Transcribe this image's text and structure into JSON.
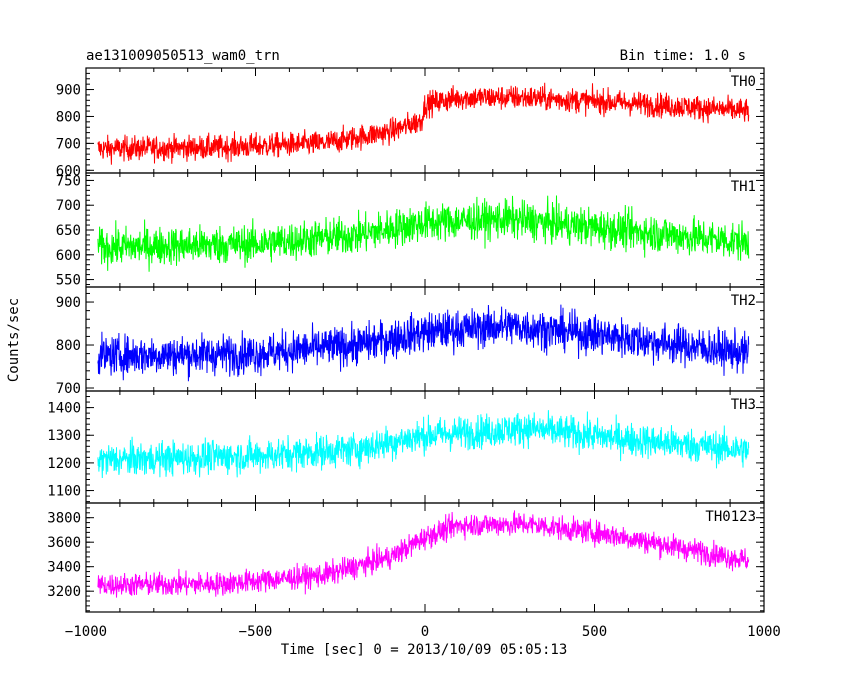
{
  "chart_data": {
    "type": "line",
    "title": "ae131009050513_wam0_trn",
    "bin_time_label": "Bin time: 1.0 s",
    "xlabel": "Time [sec] 0 = 2013/10/09 05:05:13",
    "ylabel": "Counts/sec",
    "xlim": [
      -1000,
      1000
    ],
    "xticks": [
      -1000,
      -500,
      0,
      500,
      1000
    ],
    "x_tick_labels": [
      "−1000",
      "−500",
      "0",
      "500",
      "1000"
    ],
    "data_x_range": [
      -965,
      955
    ],
    "grid": false,
    "panels": [
      {
        "name": "TH0",
        "color": "#ff0000",
        "ylim": [
          590,
          980
        ],
        "yticks": [
          600,
          700,
          800,
          900
        ],
        "y_tick_labels": [
          "600",
          "700",
          "800",
          "900"
        ],
        "trend": [
          [
            -965,
            680
          ],
          [
            -600,
            685
          ],
          [
            -300,
            700
          ],
          [
            -100,
            745
          ],
          [
            -10,
            785
          ],
          [
            0,
            845
          ],
          [
            100,
            870
          ],
          [
            300,
            870
          ],
          [
            600,
            850
          ],
          [
            955,
            820
          ]
        ],
        "noise_amplitude": 45
      },
      {
        "name": "TH1",
        "color": "#00ff00",
        "ylim": [
          535,
          765
        ],
        "yticks": [
          550,
          600,
          650,
          700,
          750
        ],
        "y_tick_labels": [
          "550",
          "600",
          "650",
          "700",
          "750"
        ],
        "trend": [
          [
            -965,
            615
          ],
          [
            -500,
            622
          ],
          [
            -200,
            640
          ],
          [
            0,
            665
          ],
          [
            250,
            672
          ],
          [
            500,
            655
          ],
          [
            955,
            625
          ]
        ],
        "noise_amplitude": 38
      },
      {
        "name": "TH2",
        "color": "#0000ff",
        "ylim": [
          693,
          935
        ],
        "yticks": [
          700,
          800,
          900
        ],
        "y_tick_labels": [
          "700",
          "800",
          "900"
        ],
        "trend": [
          [
            -965,
            775
          ],
          [
            -500,
            780
          ],
          [
            -200,
            800
          ],
          [
            0,
            830
          ],
          [
            250,
            845
          ],
          [
            550,
            820
          ],
          [
            955,
            780
          ]
        ],
        "noise_amplitude": 45
      },
      {
        "name": "TH3",
        "color": "#00ffff",
        "ylim": [
          1055,
          1460
        ],
        "yticks": [
          1100,
          1200,
          1300,
          1400
        ],
        "y_tick_labels": [
          "1100",
          "1200",
          "1300",
          "1400"
        ],
        "trend": [
          [
            -965,
            1210
          ],
          [
            -500,
            1225
          ],
          [
            -200,
            1250
          ],
          [
            0,
            1300
          ],
          [
            300,
            1325
          ],
          [
            600,
            1285
          ],
          [
            955,
            1245
          ]
        ],
        "noise_amplitude": 60
      },
      {
        "name": "TH0123",
        "color": "#ff00ff",
        "ylim": [
          3030,
          3920
        ],
        "yticks": [
          3200,
          3400,
          3600,
          3800
        ],
        "y_tick_labels": [
          "3200",
          "3400",
          "3600",
          "3800"
        ],
        "trend": [
          [
            -965,
            3250
          ],
          [
            -600,
            3260
          ],
          [
            -300,
            3330
          ],
          [
            -100,
            3480
          ],
          [
            0,
            3640
          ],
          [
            100,
            3740
          ],
          [
            300,
            3750
          ],
          [
            550,
            3660
          ],
          [
            800,
            3530
          ],
          [
            955,
            3450
          ]
        ],
        "noise_amplitude": 95
      }
    ]
  }
}
